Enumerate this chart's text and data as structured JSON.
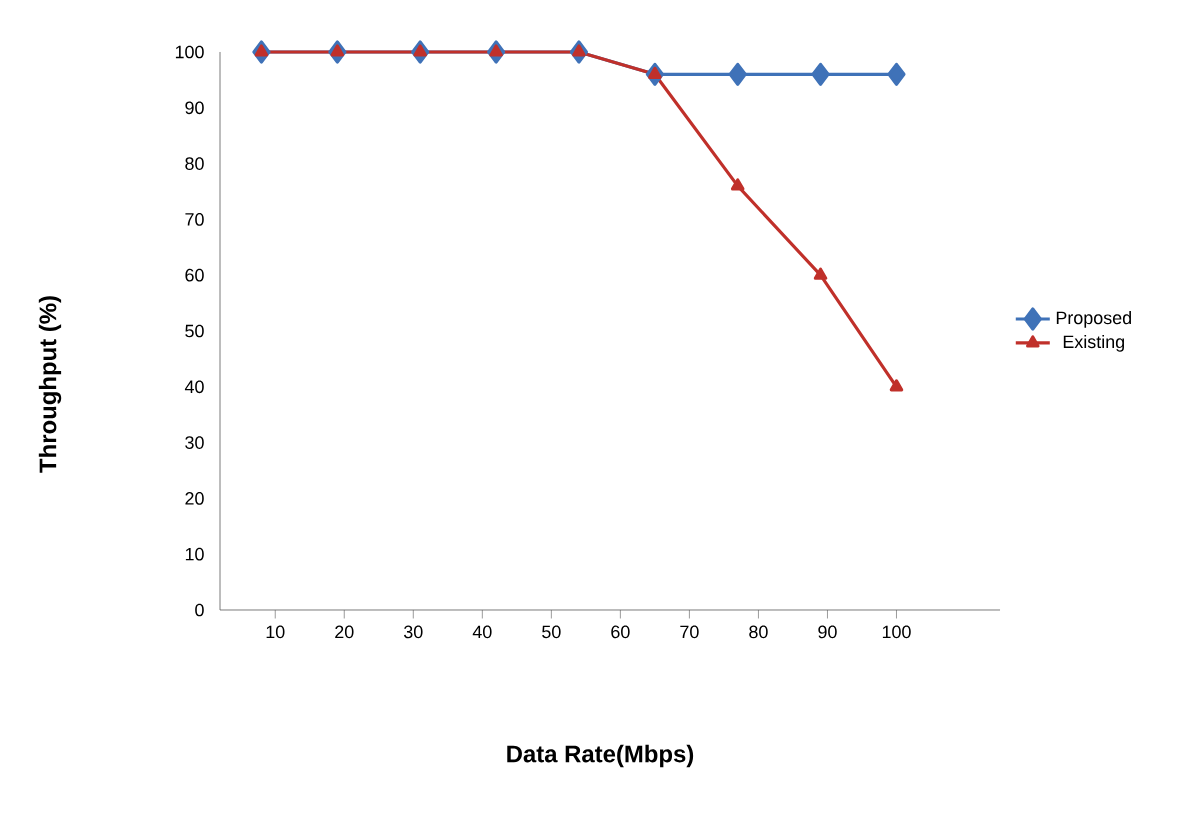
{
  "chart_data": {
    "type": "line",
    "xlabel": "Data Rate(Mbps)",
    "ylabel": "Throughput (%)",
    "xlim": [
      2,
      115
    ],
    "xticks": [
      10,
      20,
      30,
      40,
      50,
      60,
      70,
      80,
      90,
      100
    ],
    "ylim": [
      0,
      100
    ],
    "yticks": [
      0,
      10,
      20,
      30,
      40,
      50,
      60,
      70,
      80,
      90,
      100
    ],
    "legend": "right",
    "series": [
      {
        "name": "Proposed",
        "color": "#3f72b8",
        "marker": "diamond",
        "x": [
          8,
          19,
          31,
          42,
          54,
          65,
          77,
          89,
          100
        ],
        "values": [
          100,
          100,
          100,
          100,
          100,
          96,
          96,
          96,
          96
        ]
      },
      {
        "name": "Existing",
        "color": "#c0302a",
        "marker": "triangle",
        "x": [
          8,
          19,
          31,
          42,
          54,
          65,
          77,
          89,
          100
        ],
        "values": [
          100,
          100,
          100,
          100,
          100,
          96,
          76,
          60,
          40
        ]
      }
    ]
  }
}
